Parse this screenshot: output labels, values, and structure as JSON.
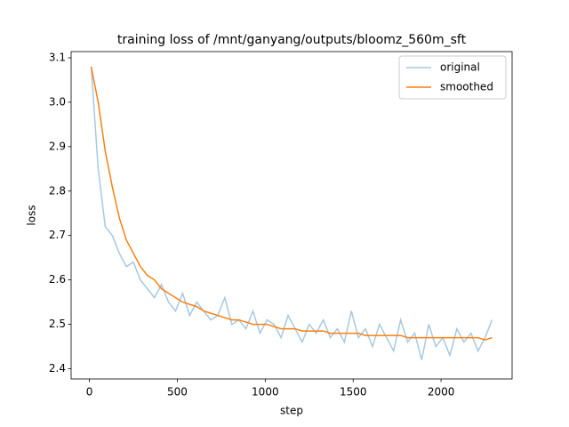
{
  "chart_data": {
    "type": "line",
    "title": "training loss of /mnt/ganyang/outputs/bloomz_560m_sft",
    "x_label": "step",
    "y_label": "loss",
    "x": [
      10,
      50,
      90,
      130,
      170,
      210,
      250,
      290,
      330,
      370,
      410,
      450,
      490,
      530,
      570,
      610,
      650,
      690,
      730,
      770,
      810,
      850,
      890,
      930,
      970,
      1010,
      1050,
      1090,
      1130,
      1170,
      1210,
      1250,
      1290,
      1330,
      1370,
      1410,
      1450,
      1490,
      1530,
      1570,
      1610,
      1650,
      1690,
      1730,
      1770,
      1810,
      1850,
      1890,
      1930,
      1970,
      2010,
      2050,
      2090,
      2130,
      2170,
      2210,
      2250,
      2290
    ],
    "series": [
      {
        "name": "original",
        "color": "#1f77b4",
        "opacity": 0.4,
        "values": [
          3.08,
          2.85,
          2.72,
          2.7,
          2.66,
          2.63,
          2.64,
          2.6,
          2.58,
          2.56,
          2.59,
          2.55,
          2.53,
          2.57,
          2.52,
          2.55,
          2.53,
          2.51,
          2.52,
          2.56,
          2.5,
          2.51,
          2.49,
          2.53,
          2.48,
          2.51,
          2.5,
          2.47,
          2.52,
          2.49,
          2.46,
          2.5,
          2.48,
          2.51,
          2.47,
          2.49,
          2.46,
          2.53,
          2.47,
          2.49,
          2.45,
          2.5,
          2.47,
          2.44,
          2.51,
          2.46,
          2.48,
          2.42,
          2.5,
          2.45,
          2.47,
          2.43,
          2.49,
          2.46,
          2.48,
          2.44,
          2.47,
          2.51
        ]
      },
      {
        "name": "smoothed",
        "color": "#ff7f0e",
        "opacity": 1,
        "values": [
          3.08,
          3.0,
          2.89,
          2.81,
          2.74,
          2.69,
          2.66,
          2.63,
          2.61,
          2.6,
          2.58,
          2.57,
          2.56,
          2.55,
          2.545,
          2.54,
          2.53,
          2.525,
          2.52,
          2.515,
          2.51,
          2.51,
          2.505,
          2.5,
          2.5,
          2.5,
          2.495,
          2.49,
          2.49,
          2.49,
          2.485,
          2.485,
          2.485,
          2.485,
          2.48,
          2.48,
          2.48,
          2.48,
          2.48,
          2.475,
          2.475,
          2.475,
          2.475,
          2.475,
          2.475,
          2.47,
          2.47,
          2.47,
          2.47,
          2.47,
          2.47,
          2.47,
          2.47,
          2.47,
          2.47,
          2.47,
          2.465,
          2.47
        ]
      }
    ],
    "xlim": [
      -104,
      2404
    ],
    "ylim": [
      2.377,
      3.114
    ],
    "xticks": [
      0,
      500,
      1000,
      1500,
      2000
    ],
    "yticks": [
      2.4,
      2.5,
      2.6,
      2.7,
      2.8,
      2.9,
      {
        "value": 3,
        "label": "3.0"
      },
      3.1
    ],
    "legend": "upper right"
  }
}
